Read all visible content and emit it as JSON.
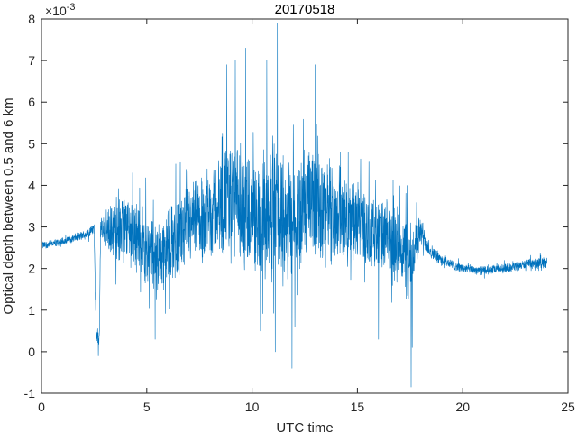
{
  "chart_data": {
    "type": "line",
    "title": "20170518",
    "xlabel": "UTC time",
    "ylabel": "Optical depth between 0.5 and 6 km",
    "xlim": [
      0,
      25
    ],
    "ylim": [
      -1,
      8
    ],
    "exponent_base": "×10",
    "exponent_power": "-3",
    "x_ticks": [
      0,
      5,
      10,
      15,
      20,
      25
    ],
    "y_ticks": [
      -1,
      0,
      1,
      2,
      3,
      4,
      5,
      6,
      7,
      8
    ],
    "x_tick_labels": [
      "0",
      "5",
      "10",
      "15",
      "20",
      "25"
    ],
    "y_tick_labels": [
      "-1",
      "0",
      "1",
      "2",
      "3",
      "4",
      "5",
      "6",
      "7",
      "8"
    ],
    "grid": false,
    "line_color": "#0072BD",
    "series": [
      {
        "x_start": 0.05,
        "x_end": 24.0,
        "profile": [
          {
            "x": 0.0,
            "mean": 2.55,
            "amp": 0.1
          },
          {
            "x": 1.0,
            "mean": 2.65,
            "amp": 0.1
          },
          {
            "x": 2.0,
            "mean": 2.8,
            "amp": 0.12
          },
          {
            "x": 2.5,
            "mean": 2.95,
            "amp": 0.15
          },
          {
            "x": 2.6,
            "mean": 0.4,
            "amp": 0.2
          },
          {
            "x": 2.75,
            "mean": 0.3,
            "amp": 0.25
          },
          {
            "x": 2.8,
            "mean": 2.9,
            "amp": 0.4
          },
          {
            "x": 3.5,
            "mean": 2.9,
            "amp": 0.8
          },
          {
            "x": 4.0,
            "mean": 3.0,
            "amp": 1.0
          },
          {
            "x": 4.5,
            "mean": 2.8,
            "amp": 1.0
          },
          {
            "x": 5.0,
            "mean": 2.5,
            "amp": 1.0
          },
          {
            "x": 5.5,
            "mean": 2.3,
            "amp": 1.0
          },
          {
            "x": 6.0,
            "mean": 2.5,
            "amp": 1.0
          },
          {
            "x": 6.5,
            "mean": 2.8,
            "amp": 1.1
          },
          {
            "x": 7.0,
            "mean": 3.0,
            "amp": 1.1
          },
          {
            "x": 8.0,
            "mean": 3.3,
            "amp": 1.2
          },
          {
            "x": 9.0,
            "mean": 3.7,
            "amp": 1.6
          },
          {
            "x": 10.0,
            "mean": 3.0,
            "amp": 1.6
          },
          {
            "x": 11.0,
            "mean": 3.6,
            "amp": 1.7
          },
          {
            "x": 12.0,
            "mean": 3.2,
            "amp": 1.6
          },
          {
            "x": 13.0,
            "mean": 3.6,
            "amp": 1.6
          },
          {
            "x": 14.0,
            "mean": 3.3,
            "amp": 1.3
          },
          {
            "x": 15.0,
            "mean": 3.1,
            "amp": 1.1
          },
          {
            "x": 16.0,
            "mean": 2.8,
            "amp": 1.0
          },
          {
            "x": 17.0,
            "mean": 2.6,
            "amp": 1.0
          },
          {
            "x": 17.5,
            "mean": 2.0,
            "amp": 1.2
          },
          {
            "x": 17.7,
            "mean": 2.5,
            "amp": 0.8
          },
          {
            "x": 18.0,
            "mean": 2.9,
            "amp": 0.4
          },
          {
            "x": 18.5,
            "mean": 2.4,
            "amp": 0.2
          },
          {
            "x": 19.0,
            "mean": 2.2,
            "amp": 0.15
          },
          {
            "x": 20.0,
            "mean": 2.0,
            "amp": 0.12
          },
          {
            "x": 21.0,
            "mean": 1.95,
            "amp": 0.12
          },
          {
            "x": 22.0,
            "mean": 2.0,
            "amp": 0.12
          },
          {
            "x": 23.0,
            "mean": 2.1,
            "amp": 0.12
          },
          {
            "x": 24.0,
            "mean": 2.15,
            "amp": 0.15
          }
        ],
        "peaks": [
          {
            "x": 2.7,
            "y": -0.1
          },
          {
            "x": 5.4,
            "y": 0.3
          },
          {
            "x": 8.8,
            "y": 6.9
          },
          {
            "x": 9.2,
            "y": 7.0
          },
          {
            "x": 9.7,
            "y": 7.3
          },
          {
            "x": 10.7,
            "y": 7.0
          },
          {
            "x": 11.2,
            "y": 7.9
          },
          {
            "x": 11.9,
            "y": -0.4
          },
          {
            "x": 13.0,
            "y": 6.9
          },
          {
            "x": 11.1,
            "y": 0.0
          },
          {
            "x": 10.4,
            "y": 0.5
          },
          {
            "x": 17.55,
            "y": -0.85
          },
          {
            "x": 17.6,
            "y": 0.1
          },
          {
            "x": 16.0,
            "y": 0.3
          }
        ]
      }
    ]
  }
}
